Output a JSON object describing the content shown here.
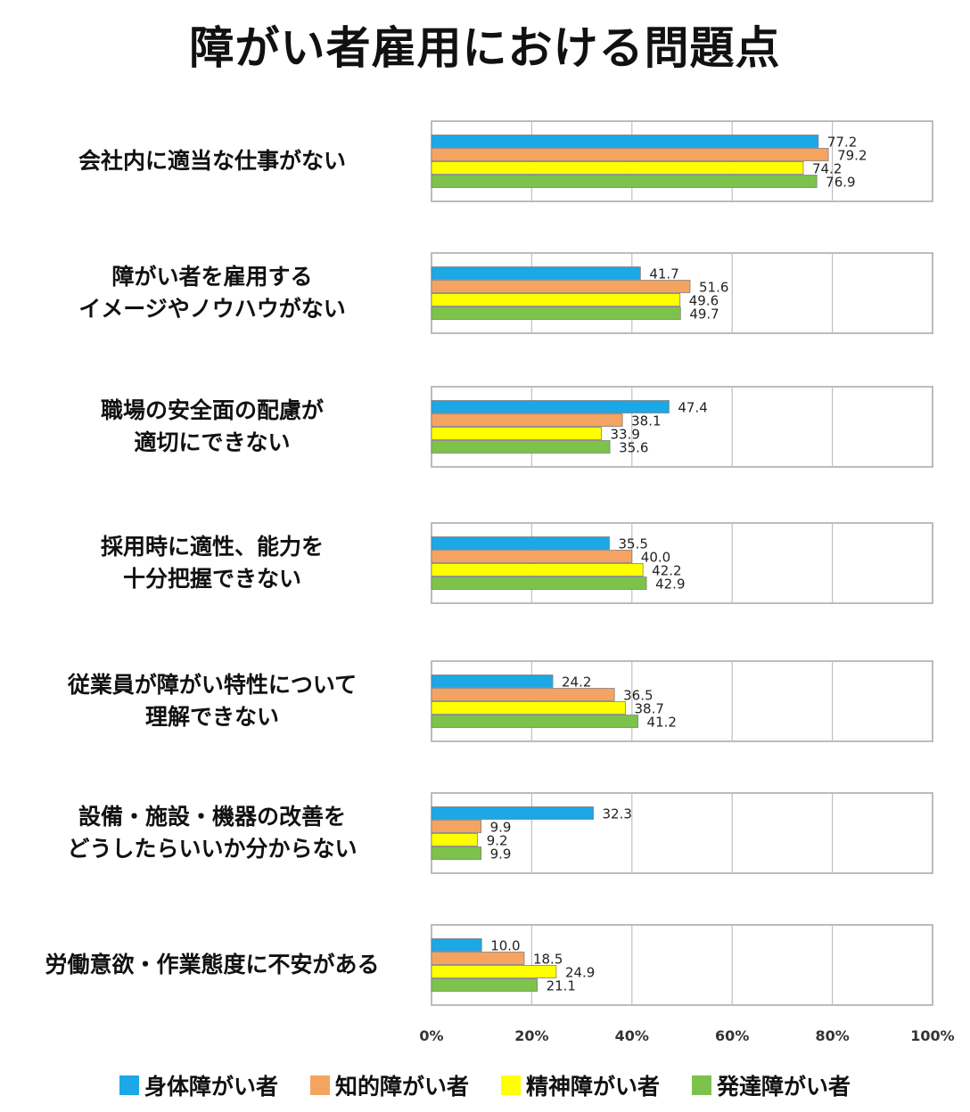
{
  "chart_data": {
    "type": "bar",
    "orientation": "horizontal",
    "title": "障がい者雇用における問題点",
    "categories": [
      "会社内に適当な仕事がない",
      "障がい者を雇用する\nイメージやノウハウがない",
      "職場の安全面の配慮が\n適切にできない",
      "採用時に適性、能力を\n十分把握できない",
      "従業員が障がい特性について\n理解できない",
      "設備・施設・機器の改善を\nどうしたらいいか分からない",
      "労働意欲・作業態度に不安がある"
    ],
    "series": [
      {
        "name": "身体障がい者",
        "color": "#1CA7E6",
        "values": [
          77.2,
          41.7,
          47.4,
          35.5,
          24.2,
          32.3,
          10.0
        ]
      },
      {
        "name": "知的障がい者",
        "color": "#F4A460",
        "values": [
          79.2,
          51.6,
          38.1,
          40.0,
          36.5,
          9.9,
          18.5
        ]
      },
      {
        "name": "精神障がい者",
        "color": "#FFFF00",
        "values": [
          74.2,
          49.6,
          33.9,
          42.2,
          38.7,
          9.2,
          24.9
        ]
      },
      {
        "name": "発達障がい者",
        "color": "#7DC24B",
        "values": [
          76.9,
          49.7,
          35.6,
          42.9,
          41.2,
          9.9,
          21.1
        ]
      }
    ],
    "xlim": [
      0,
      100
    ],
    "x_ticks": [
      "0%",
      "20%",
      "40%",
      "60%",
      "80%",
      "100%"
    ],
    "grid": true,
    "legend_position": "bottom"
  }
}
